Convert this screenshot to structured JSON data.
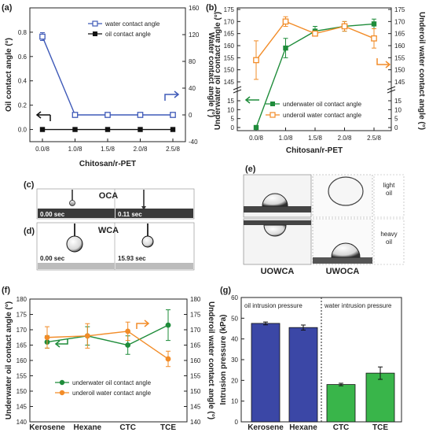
{
  "panels": {
    "a": "(a)",
    "b": "(b)",
    "c": "(c)",
    "d": "(d)",
    "e": "(e)",
    "f": "(f)",
    "g": "(g)"
  },
  "photos": {
    "c_title": "OCA",
    "c_t1": "0.00 sec",
    "c_t2": "0.11 sec",
    "d_title": "WCA",
    "d_t1": "0.00 sec",
    "d_t2": "15.93 sec",
    "e_light": "light oil",
    "e_heavy": "heavy oil",
    "e_uowca": "UOWCA",
    "e_uwoca": "UWOCA"
  },
  "chart_data": [
    {
      "id": "a",
      "type": "line",
      "categories": [
        "0.0/8",
        "1.0/8",
        "1.5/8",
        "2.0/8",
        "2.5/8"
      ],
      "xlabel": "Chitosan/r-PET",
      "ylabel": "Oil contact angle (°)",
      "y2label": "Water contact angle (°)",
      "ylim": [
        -0.1,
        1.0
      ],
      "yticks": [
        "0.0",
        "0.2",
        "0.4",
        "0.6",
        "0.8"
      ],
      "y2lim": [
        -40,
        160
      ],
      "y2ticks": [
        "-40",
        "0",
        "40",
        "80",
        "120",
        "160"
      ],
      "series": [
        {
          "name": "water contact angle",
          "axis": "right",
          "color": "#3f5ab8",
          "marker": "square-open",
          "values": [
            117,
            0,
            0,
            0,
            0
          ]
        },
        {
          "name": "oil contact angle",
          "axis": "left",
          "color": "#111111",
          "marker": "square",
          "values": [
            0,
            0,
            0,
            0,
            0
          ]
        }
      ]
    },
    {
      "id": "b",
      "type": "line",
      "categories": [
        "0.0/8",
        "1.0/8",
        "1.5/8",
        "2.0/8",
        "2.5/8"
      ],
      "xlabel": "Chitosan/r-PET",
      "ylabel": "Underwater oil contact angle (°)",
      "y2label": "Underoil water contact angle (°)",
      "yticks": [
        "0",
        "5",
        "10",
        "15",
        "145",
        "150",
        "155",
        "160",
        "165",
        "170",
        "175"
      ],
      "y2ticks": [
        "0",
        "5",
        "10",
        "15",
        "145",
        "150",
        "155",
        "160",
        "165",
        "170",
        "175"
      ],
      "series": [
        {
          "name": "underwater oil contact angle",
          "color": "#1e8c3a",
          "marker": "square",
          "values": [
            0,
            159,
            166,
            168,
            169
          ],
          "errors": [
            0,
            4,
            2,
            2,
            2
          ]
        },
        {
          "name": "underoil water contact angle",
          "color": "#f28c28",
          "marker": "square-open",
          "values": [
            154,
            170,
            165,
            168,
            163
          ],
          "errors": [
            8,
            2,
            1,
            2,
            4
          ]
        }
      ]
    },
    {
      "id": "f",
      "type": "line",
      "categories": [
        "Kerosene",
        "Hexane",
        "CTC",
        "TCE"
      ],
      "ylabel": "Underwater oil contact angle (°)",
      "y2label": "Underoil water contact angle (°)",
      "ylim": [
        140,
        180
      ],
      "yticks": [
        "140",
        "145",
        "150",
        "155",
        "160",
        "165",
        "170",
        "175",
        "180"
      ],
      "y2lim": [
        140,
        180
      ],
      "y2ticks": [
        "140",
        "145",
        "150",
        "155",
        "160",
        "165",
        "170",
        "175",
        "180"
      ],
      "series": [
        {
          "name": "underwater oil contact angle",
          "color": "#1e8c3a",
          "values": [
            166,
            168,
            165,
            171.5
          ],
          "errors": [
            2,
            3,
            3,
            5
          ]
        },
        {
          "name": "underoil water contact angle",
          "color": "#f28c28",
          "values": [
            167.5,
            168,
            169.5,
            160.5
          ],
          "errors": [
            3.5,
            4,
            3,
            2.5
          ]
        }
      ]
    },
    {
      "id": "g",
      "type": "bar",
      "categories": [
        "Kerosene",
        "Hexane",
        "CTC",
        "TCE"
      ],
      "ylabel": "Intrusion pressure (kPa)",
      "ylim": [
        0,
        60
      ],
      "yticks": [
        "0",
        "10",
        "20",
        "30",
        "40",
        "50",
        "60"
      ],
      "values": [
        47.5,
        45.5,
        18,
        23.5
      ],
      "errors": [
        0.7,
        1.2,
        0.6,
        3
      ],
      "colors": [
        "#3b47a6",
        "#3b47a6",
        "#39b54a",
        "#39b54a"
      ],
      "annotations": [
        "oil intrusion pressure",
        "water intrusion pressure"
      ]
    }
  ]
}
